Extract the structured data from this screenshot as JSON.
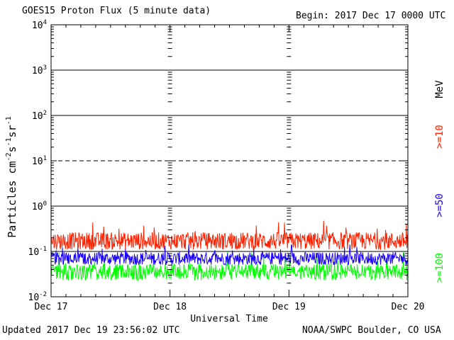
{
  "header": {
    "title": "GOES15 Proton Flux (5 minute data)",
    "begin": "Begin: 2017 Dec 17 0000 UTC"
  },
  "footer": {
    "updated": "Updated 2017 Dec 19 23:56:02 UTC",
    "credit": "NOAA/SWPC Boulder, CO USA"
  },
  "colors": {
    "ge10": "#ff2200",
    "ge50": "#1a00ff",
    "ge100": "#00ff00",
    "warning_line": "#000000"
  },
  "chart_data": {
    "type": "line",
    "title": "GOES15 Proton Flux (5 minute data)",
    "xlabel": "Universal Time",
    "ylabel": "Particles cm-2s-1sr-1",
    "unit_label": "MeV",
    "yscale": "log",
    "ylim": [
      0.01,
      10000
    ],
    "x_ticks": [
      "Dec 17",
      "Dec 18",
      "Dec 19",
      "Dec 20"
    ],
    "y_ticks": [
      {
        "base": "10",
        "exp": "-2"
      },
      {
        "base": "10",
        "exp": "-1"
      },
      {
        "base": "10",
        "exp": "0"
      },
      {
        "base": "10",
        "exp": "1"
      },
      {
        "base": "10",
        "exp": "2"
      },
      {
        "base": "10",
        "exp": "3"
      },
      {
        "base": "10",
        "exp": "4"
      }
    ],
    "reference_lines": [
      {
        "value": 10,
        "style": "dashed"
      },
      {
        "value": 1,
        "style": "solid"
      },
      {
        "value": 100,
        "style": "solid"
      },
      {
        "value": 1000,
        "style": "solid"
      },
      {
        "value": 0.1,
        "style": "solid"
      }
    ],
    "series": [
      {
        "name": ">=10",
        "color": "#ff2200",
        "typical": 0.17,
        "min": 0.1,
        "max": 0.5
      },
      {
        "name": ">=50",
        "color": "#1a00ff",
        "typical": 0.07,
        "min": 0.045,
        "max": 0.15
      },
      {
        "name": ">=100",
        "color": "#00ff00",
        "typical": 0.035,
        "min": 0.022,
        "max": 0.1
      }
    ]
  }
}
